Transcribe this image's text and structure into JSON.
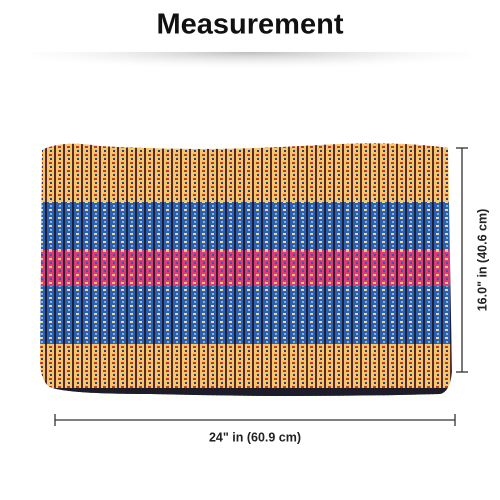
{
  "header": {
    "title": "Measurement"
  },
  "dimensions": {
    "width": "24\" in (60.9 cm)",
    "height": "16.0\" in (40.6 cm)"
  }
}
